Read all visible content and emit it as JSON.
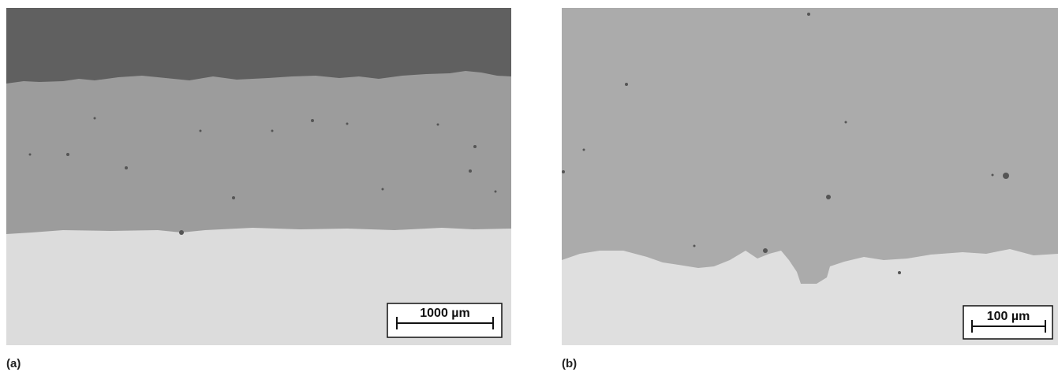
{
  "panels": [
    {
      "label": "(a)",
      "scale_bar": "1000 µm"
    },
    {
      "label": "(b)",
      "scale_bar": "100 µm"
    }
  ]
}
